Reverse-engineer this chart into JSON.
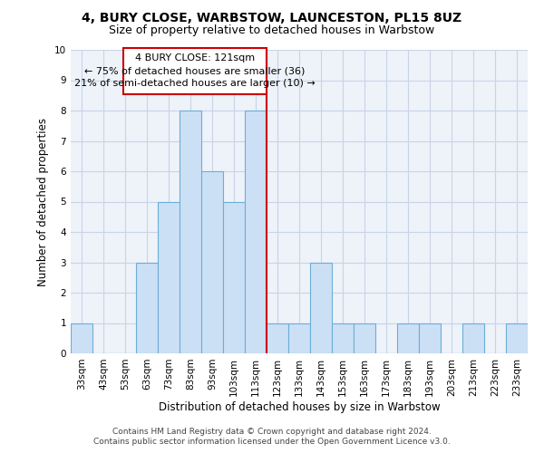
{
  "title1": "4, BURY CLOSE, WARBSTOW, LAUNCESTON, PL15 8UZ",
  "title2": "Size of property relative to detached houses in Warbstow",
  "xlabel": "Distribution of detached houses by size in Warbstow",
  "ylabel": "Number of detached properties",
  "categories": [
    "33sqm",
    "43sqm",
    "53sqm",
    "63sqm",
    "73sqm",
    "83sqm",
    "93sqm",
    "103sqm",
    "113sqm",
    "123sqm",
    "133sqm",
    "143sqm",
    "153sqm",
    "163sqm",
    "173sqm",
    "183sqm",
    "193sqm",
    "203sqm",
    "213sqm",
    "223sqm",
    "233sqm"
  ],
  "values": [
    1,
    0,
    0,
    3,
    5,
    8,
    6,
    5,
    8,
    1,
    1,
    3,
    1,
    1,
    0,
    1,
    1,
    0,
    1,
    0,
    1
  ],
  "bar_color": "#cce0f5",
  "bar_edge_color": "#6baed6",
  "vline_color": "#cc0000",
  "annotation_line1": "4 BURY CLOSE: 121sqm",
  "annotation_line2": "← 75% of detached houses are smaller (36)",
  "annotation_line3": "21% of semi-detached houses are larger (10) →",
  "annotation_box_color": "#cc0000",
  "ylim": [
    0,
    10
  ],
  "yticks": [
    0,
    1,
    2,
    3,
    4,
    5,
    6,
    7,
    8,
    9,
    10
  ],
  "grid_color": "#c8d4e8",
  "background_color": "#eef2f9",
  "footer1": "Contains HM Land Registry data © Crown copyright and database right 2024.",
  "footer2": "Contains public sector information licensed under the Open Government Licence v3.0.",
  "title1_fontsize": 10,
  "title2_fontsize": 9,
  "xlabel_fontsize": 8.5,
  "ylabel_fontsize": 8.5,
  "tick_fontsize": 7.5,
  "annotation_fontsize": 8,
  "footer_fontsize": 6.5
}
